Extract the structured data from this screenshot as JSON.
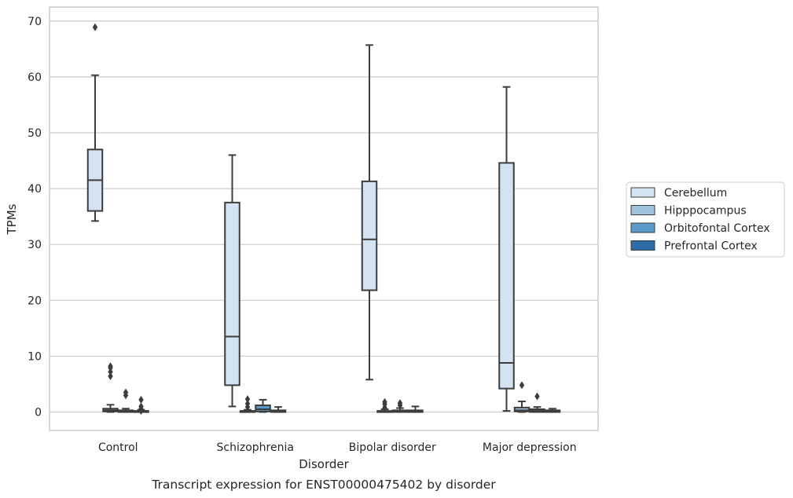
{
  "chart_data": {
    "type": "box",
    "title": "",
    "caption": "Transcript expression for ENST00000475402 by disorder",
    "xlabel": "Disorder",
    "ylabel": "TPMs",
    "ylim": [
      -3.3,
      72.5
    ],
    "yticks": [
      0,
      10,
      20,
      30,
      40,
      50,
      60,
      70
    ],
    "grid": "horizontal",
    "legend_position": "right",
    "categories": [
      "Control",
      "Schizophrenia",
      "Bipolar disorder",
      "Major depression"
    ],
    "series": [
      {
        "name": "Cerebellum",
        "color": "#d3e3f2",
        "boxes": [
          {
            "q1": 36.0,
            "median": 41.5,
            "q3": 47.0,
            "whisker_low": 34.2,
            "whisker_high": 60.3,
            "outliers": [
              68.9
            ]
          },
          {
            "q1": 4.8,
            "median": 13.5,
            "q3": 37.5,
            "whisker_low": 1.0,
            "whisker_high": 46.0,
            "outliers": []
          },
          {
            "q1": 21.8,
            "median": 30.9,
            "q3": 41.3,
            "whisker_low": 5.8,
            "whisker_high": 65.7,
            "outliers": []
          },
          {
            "q1": 4.2,
            "median": 8.8,
            "q3": 44.6,
            "whisker_low": 0.2,
            "whisker_high": 58.2,
            "outliers": []
          }
        ]
      },
      {
        "name": "Hipppocampus",
        "color": "#9fc4de",
        "boxes": [
          {
            "q1": 0.1,
            "median": 0.3,
            "q3": 0.6,
            "whisker_low": 0.0,
            "whisker_high": 1.3,
            "outliers": [
              6.4,
              7.2,
              7.9,
              8.2
            ]
          },
          {
            "q1": 0.0,
            "median": 0.1,
            "q3": 0.2,
            "whisker_low": 0.0,
            "whisker_high": 0.4,
            "outliers": [
              0.9,
              1.5,
              2.3
            ]
          },
          {
            "q1": 0.0,
            "median": 0.1,
            "q3": 0.2,
            "whisker_low": 0.0,
            "whisker_high": 0.5,
            "outliers": [
              0.8,
              1.4,
              1.8
            ]
          },
          {
            "q1": 0.1,
            "median": 0.3,
            "q3": 0.8,
            "whisker_low": 0.0,
            "whisker_high": 1.9,
            "outliers": [
              4.8
            ]
          }
        ]
      },
      {
        "name": "Orbitofontal Cortex",
        "color": "#5b9bc9",
        "boxes": [
          {
            "q1": 0.0,
            "median": 0.1,
            "q3": 0.3,
            "whisker_low": 0.0,
            "whisker_high": 0.6,
            "outliers": [
              3.0,
              3.5
            ]
          },
          {
            "q1": 0.1,
            "median": 0.5,
            "q3": 1.2,
            "whisker_low": 0.0,
            "whisker_high": 2.2,
            "outliers": []
          },
          {
            "q1": 0.0,
            "median": 0.1,
            "q3": 0.3,
            "whisker_low": 0.0,
            "whisker_high": 0.7,
            "outliers": [
              1.2,
              1.6
            ]
          },
          {
            "q1": 0.0,
            "median": 0.2,
            "q3": 0.5,
            "whisker_low": 0.0,
            "whisker_high": 0.9,
            "outliers": [
              2.8
            ]
          }
        ]
      },
      {
        "name": "Prefrontal Cortex",
        "color": "#2f6ca6",
        "boxes": [
          {
            "q1": 0.0,
            "median": 0.1,
            "q3": 0.2,
            "whisker_low": 0.0,
            "whisker_high": 0.4,
            "outliers": [
              0.2,
              0.6,
              1.0,
              2.2
            ]
          },
          {
            "q1": 0.0,
            "median": 0.1,
            "q3": 0.3,
            "whisker_low": 0.0,
            "whisker_high": 0.9,
            "outliers": []
          },
          {
            "q1": 0.0,
            "median": 0.1,
            "q3": 0.3,
            "whisker_low": 0.0,
            "whisker_high": 1.0,
            "outliers": []
          },
          {
            "q1": 0.0,
            "median": 0.1,
            "q3": 0.3,
            "whisker_low": 0.0,
            "whisker_high": 0.6,
            "outliers": []
          }
        ]
      }
    ]
  }
}
